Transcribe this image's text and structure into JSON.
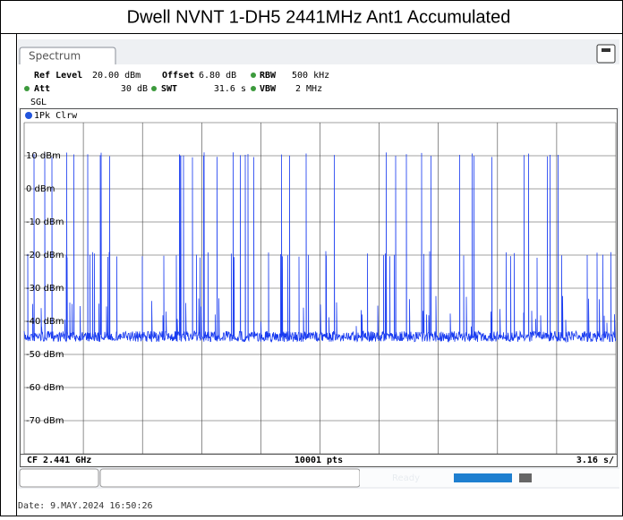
{
  "header": {
    "title": "Dwell NVNT 1-DH5 2441MHz Ant1 Accumulated"
  },
  "analyzer": {
    "tab": "Spectrum",
    "settings": {
      "ref_level_label": "Ref Level",
      "ref_level": "20.00 dBm",
      "offset_label": "Offset",
      "offset": "6.80 dB",
      "rbw_label": "RBW",
      "rbw": "500 kHz",
      "att_label": "Att",
      "att": "30 dB",
      "swt_label": "SWT",
      "swt": "31.6 s",
      "vbw_label": "VBW",
      "vbw": "2 MHz",
      "mode": "SGL"
    },
    "trace_label": "1Pk Clrw",
    "y_labels": [
      "10 dBm",
      "0 dBm",
      "-10 dBm",
      "-20 dBm",
      "-30 dBm",
      "-40 dBm",
      "-50 dBm",
      "-60 dBm",
      "-70 dBm"
    ],
    "footer": {
      "center_freq": "CF 2.441 GHz",
      "points": "10001 pts",
      "sweep": "3.16 s/"
    },
    "status": "Ready"
  },
  "date": "Date: 9.MAY.2024  16:50:26"
}
